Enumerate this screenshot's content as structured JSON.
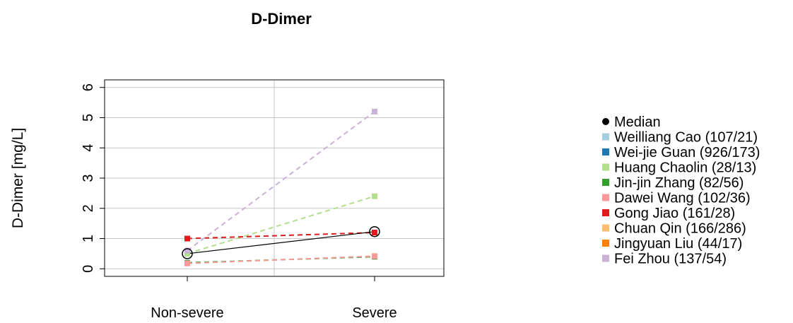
{
  "chart_data": {
    "type": "line",
    "title": "D-Dimer",
    "xlabel": "",
    "ylabel": "D-Dimer [mg/L]",
    "categories": [
      "Non-severe",
      "Severe"
    ],
    "yticks": [
      "0",
      "1",
      "2",
      "3",
      "4",
      "5",
      "6"
    ],
    "ylim": [
      -0.25,
      6.25
    ],
    "grid": true,
    "legend_position": "right",
    "median": {
      "name": "Median",
      "values": [
        0.5,
        1.23
      ],
      "color": "#000000"
    },
    "series": [
      {
        "name": "Weilliang Cao (107/21)",
        "values": [
          null,
          null
        ],
        "color": "#A6CEE3"
      },
      {
        "name": "Wei-jie Guan (926/173)",
        "values": [
          null,
          null
        ],
        "color": "#1F78B4"
      },
      {
        "name": "Huang Chaolin (28/13)",
        "values": [
          0.5,
          2.4
        ],
        "color": "#B2DF8A"
      },
      {
        "name": "Jin-jin Zhang (82/56)",
        "values": [
          0.2,
          0.4
        ],
        "color": "#33A02C"
      },
      {
        "name": "Dawei Wang (102/36)",
        "values": [
          0.18,
          0.42
        ],
        "color": "#FB9A99"
      },
      {
        "name": "Gong Jiao (161/28)",
        "values": [
          1.0,
          1.2
        ],
        "color": "#E31A1C"
      },
      {
        "name": "Chuan Qin (166/286)",
        "values": [
          null,
          null
        ],
        "color": "#FDBF6F"
      },
      {
        "name": "Jingyuan Liu (44/17)",
        "values": [
          null,
          null
        ],
        "color": "#FF7F00"
      },
      {
        "name": "Fei Zhou (137/54)",
        "values": [
          0.6,
          5.2
        ],
        "color": "#CAB2D6"
      }
    ]
  }
}
